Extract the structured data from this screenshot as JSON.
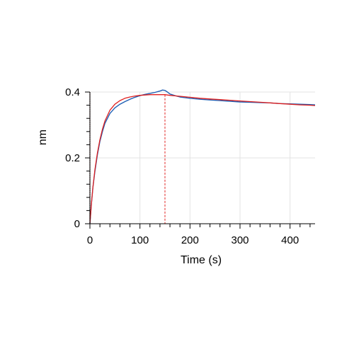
{
  "chart_data": {
    "type": "line",
    "xlabel": "Time (s)",
    "ylabel": "nm",
    "xlim": [
      0,
      450
    ],
    "ylim": [
      0,
      0.4
    ],
    "x_ticks": [
      0,
      100,
      200,
      300,
      400
    ],
    "y_ticks": [
      0,
      0.2,
      0.4
    ],
    "x_tick_labels": [
      "0",
      "100",
      "200",
      "300",
      "400"
    ],
    "y_tick_labels": [
      "0",
      "0.2",
      "0.4"
    ],
    "grid": true,
    "marker_line_x": 150,
    "series": [
      {
        "color": "#1f5fb4",
        "x": [
          0,
          3,
          6,
          10,
          15,
          20,
          25,
          30,
          40,
          50,
          60,
          70,
          80,
          90,
          100,
          110,
          120,
          130,
          140,
          145,
          150,
          155,
          160,
          170,
          180,
          190,
          200,
          220,
          240,
          260,
          280,
          300,
          320,
          340,
          360,
          380,
          400,
          420,
          440,
          450
        ],
        "y": [
          0,
          0.06,
          0.11,
          0.16,
          0.21,
          0.25,
          0.28,
          0.305,
          0.335,
          0.352,
          0.363,
          0.371,
          0.378,
          0.384,
          0.389,
          0.393,
          0.396,
          0.399,
          0.403,
          0.406,
          0.405,
          0.4,
          0.394,
          0.389,
          0.385,
          0.383,
          0.381,
          0.378,
          0.376,
          0.374,
          0.372,
          0.37,
          0.369,
          0.368,
          0.367,
          0.365,
          0.364,
          0.363,
          0.362,
          0.361
        ]
      },
      {
        "color": "#e0201f",
        "x": [
          0,
          3,
          6,
          10,
          15,
          20,
          25,
          30,
          40,
          50,
          60,
          70,
          80,
          90,
          100,
          110,
          120,
          130,
          140,
          150,
          160,
          180,
          200,
          220,
          240,
          260,
          280,
          300,
          320,
          340,
          360,
          380,
          400,
          420,
          440,
          450
        ],
        "y": [
          0,
          0.06,
          0.11,
          0.165,
          0.215,
          0.255,
          0.287,
          0.312,
          0.345,
          0.363,
          0.374,
          0.381,
          0.385,
          0.388,
          0.39,
          0.391,
          0.392,
          0.392,
          0.392,
          0.392,
          0.39,
          0.387,
          0.384,
          0.381,
          0.379,
          0.377,
          0.375,
          0.373,
          0.371,
          0.369,
          0.367,
          0.365,
          0.363,
          0.361,
          0.36,
          0.359
        ]
      }
    ]
  }
}
